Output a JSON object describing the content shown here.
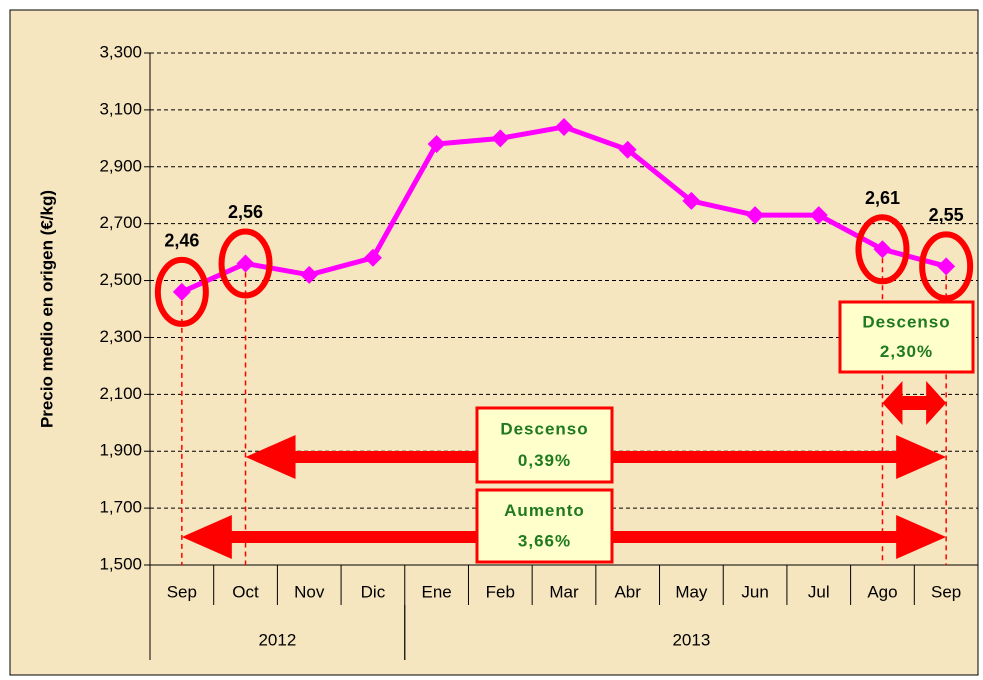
{
  "chart_data": {
    "type": "line",
    "y_label": "Precio medio en origen (€/kg)",
    "categories": [
      "Sep",
      "Oct",
      "Nov",
      "Dic",
      "Ene",
      "Feb",
      "Mar",
      "Abr",
      "May",
      "Jun",
      "Jul",
      "Ago",
      "Sep"
    ],
    "groups": [
      {
        "label": "2012",
        "start": 0,
        "end": 3
      },
      {
        "label": "2013",
        "start": 4,
        "end": 12
      }
    ],
    "values": [
      2.46,
      2.56,
      2.52,
      2.58,
      2.98,
      3.0,
      3.04,
      2.96,
      2.78,
      2.73,
      2.73,
      2.61,
      2.55
    ],
    "value_labels": [
      "2,46",
      "2,56",
      null,
      null,
      null,
      null,
      null,
      null,
      null,
      null,
      null,
      "2,61",
      "2,55"
    ],
    "color": "#ff00ff",
    "ylim": [
      1.5,
      3.3
    ],
    "yticks": [
      {
        "value": 1.5,
        "label": "1,500"
      },
      {
        "value": 1.7,
        "label": "1,700"
      },
      {
        "value": 1.9,
        "label": "1,900"
      },
      {
        "value": 2.1,
        "label": "2,100"
      },
      {
        "value": 2.3,
        "label": "2,300"
      },
      {
        "value": 2.5,
        "label": "2,500"
      },
      {
        "value": 2.7,
        "label": "2,700"
      },
      {
        "value": 2.9,
        "label": "2,900"
      },
      {
        "value": 3.1,
        "label": "3,100"
      },
      {
        "value": 3.3,
        "label": "3,300"
      }
    ],
    "grid": true,
    "annotations": [
      {
        "title": "Descenso",
        "text": "0,39%"
      },
      {
        "title": "Aumento",
        "text": "3,66%"
      },
      {
        "title": "Descenso",
        "text": "2,30%"
      }
    ]
  }
}
